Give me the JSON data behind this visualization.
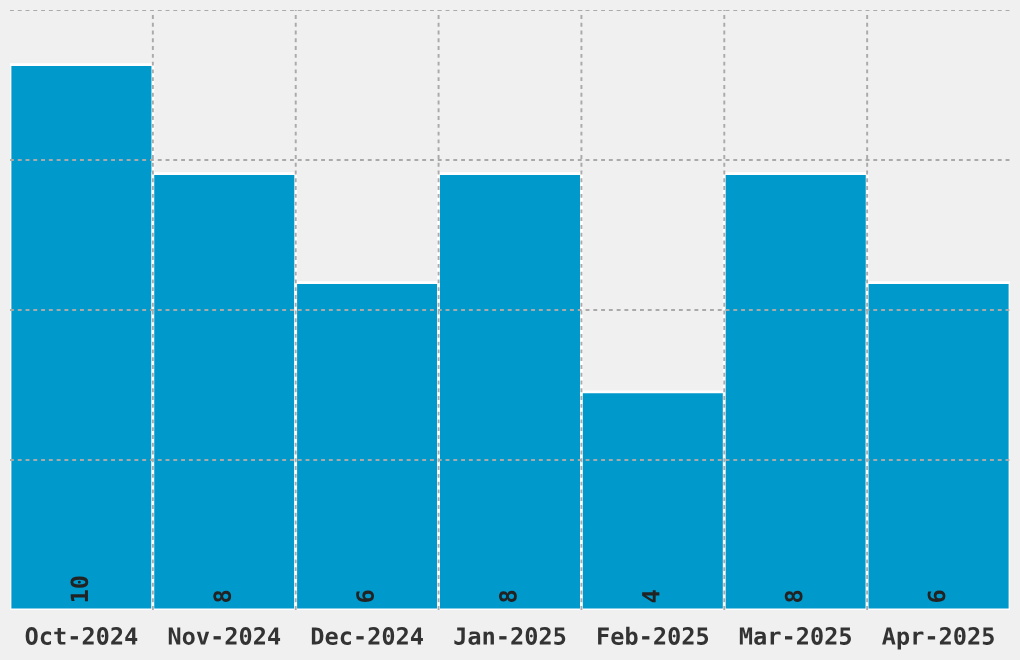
{
  "chart_data": {
    "type": "bar",
    "categories": [
      "Oct-2024",
      "Nov-2024",
      "Dec-2024",
      "Jan-2025",
      "Feb-2025",
      "Mar-2025",
      "Apr-2025"
    ],
    "values": [
      10,
      8,
      6,
      8,
      4,
      8,
      6
    ],
    "color": "#0099cc",
    "ylim": [
      0,
      11
    ],
    "yticks": [
      {
        "value": 2.75,
        "label": null
      },
      {
        "value": 5.5,
        "label": null
      },
      {
        "value": 8.25,
        "label": null
      },
      {
        "value": 11,
        "label": null
      }
    ],
    "tick_labels": "x",
    "grid": true,
    "data_labels": true
  }
}
